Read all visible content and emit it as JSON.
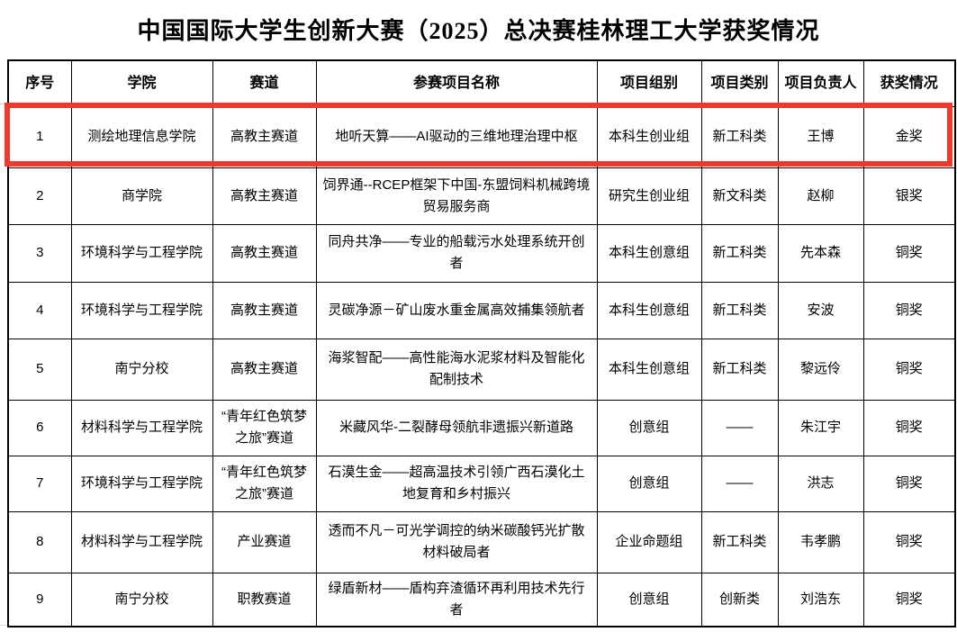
{
  "title": "中国国际大学生创新大赛（2025）总决赛桂林理工大学获奖情况",
  "table": {
    "columns": [
      "序号",
      "学院",
      "赛道",
      "参赛项目名称",
      "项目组别",
      "项目类别",
      "项目负责人",
      "获奖情况"
    ],
    "rows": [
      [
        "1",
        "测绘地理信息学院",
        "高教主赛道",
        "地听天算——AI驱动的三维地理治理中枢",
        "本科生创业组",
        "新工科类",
        "王博",
        "金奖"
      ],
      [
        "2",
        "商学院",
        "高教主赛道",
        "饲界通--RCEP框架下中国-东盟饲料机械跨境贸易服务商",
        "研究生创业组",
        "新文科类",
        "赵柳",
        "银奖"
      ],
      [
        "3",
        "环境科学与工程学院",
        "高教主赛道",
        "同舟共净——专业的船载污水处理系统开创者",
        "本科生创意组",
        "新工科类",
        "先本森",
        "铜奖"
      ],
      [
        "4",
        "环境科学与工程学院",
        "高教主赛道",
        "灵碳净源－矿山废水重金属高效捕集领航者",
        "本科生创意组",
        "新工科类",
        "安波",
        "铜奖"
      ],
      [
        "5",
        "南宁分校",
        "高教主赛道",
        "海浆智配——高性能海水泥浆材料及智能化配制技术",
        "本科生创意组",
        "新工科类",
        "黎远伶",
        "铜奖"
      ],
      [
        "6",
        "材料科学与工程学院",
        "“青年红色筑梦之旅”赛道",
        "米藏风华-二裂酵母领航非遗振兴新道路",
        "创意组",
        "——",
        "朱江宇",
        "铜奖"
      ],
      [
        "7",
        "环境科学与工程学院",
        "“青年红色筑梦之旅”赛道",
        "石漠生金——超高温技术引领广西石漠化土地复育和乡村振兴",
        "创意组",
        "——",
        "洪志",
        "铜奖"
      ],
      [
        "8",
        "材料科学与工程学院",
        "产业赛道",
        "透而不凡－可光学调控的纳米碳酸钙光扩散材料破局者",
        "企业命题组",
        "新工科类",
        "韦孝鹏",
        "铜奖"
      ],
      [
        "9",
        "南宁分校",
        "职教赛道",
        "绿盾新材——盾构弃渣循环再利用技术先行者",
        "创意组",
        "创新类",
        "刘浩东",
        "铜奖"
      ]
    ],
    "highlight": {
      "row_index": 0,
      "color": "#ee392c"
    }
  }
}
